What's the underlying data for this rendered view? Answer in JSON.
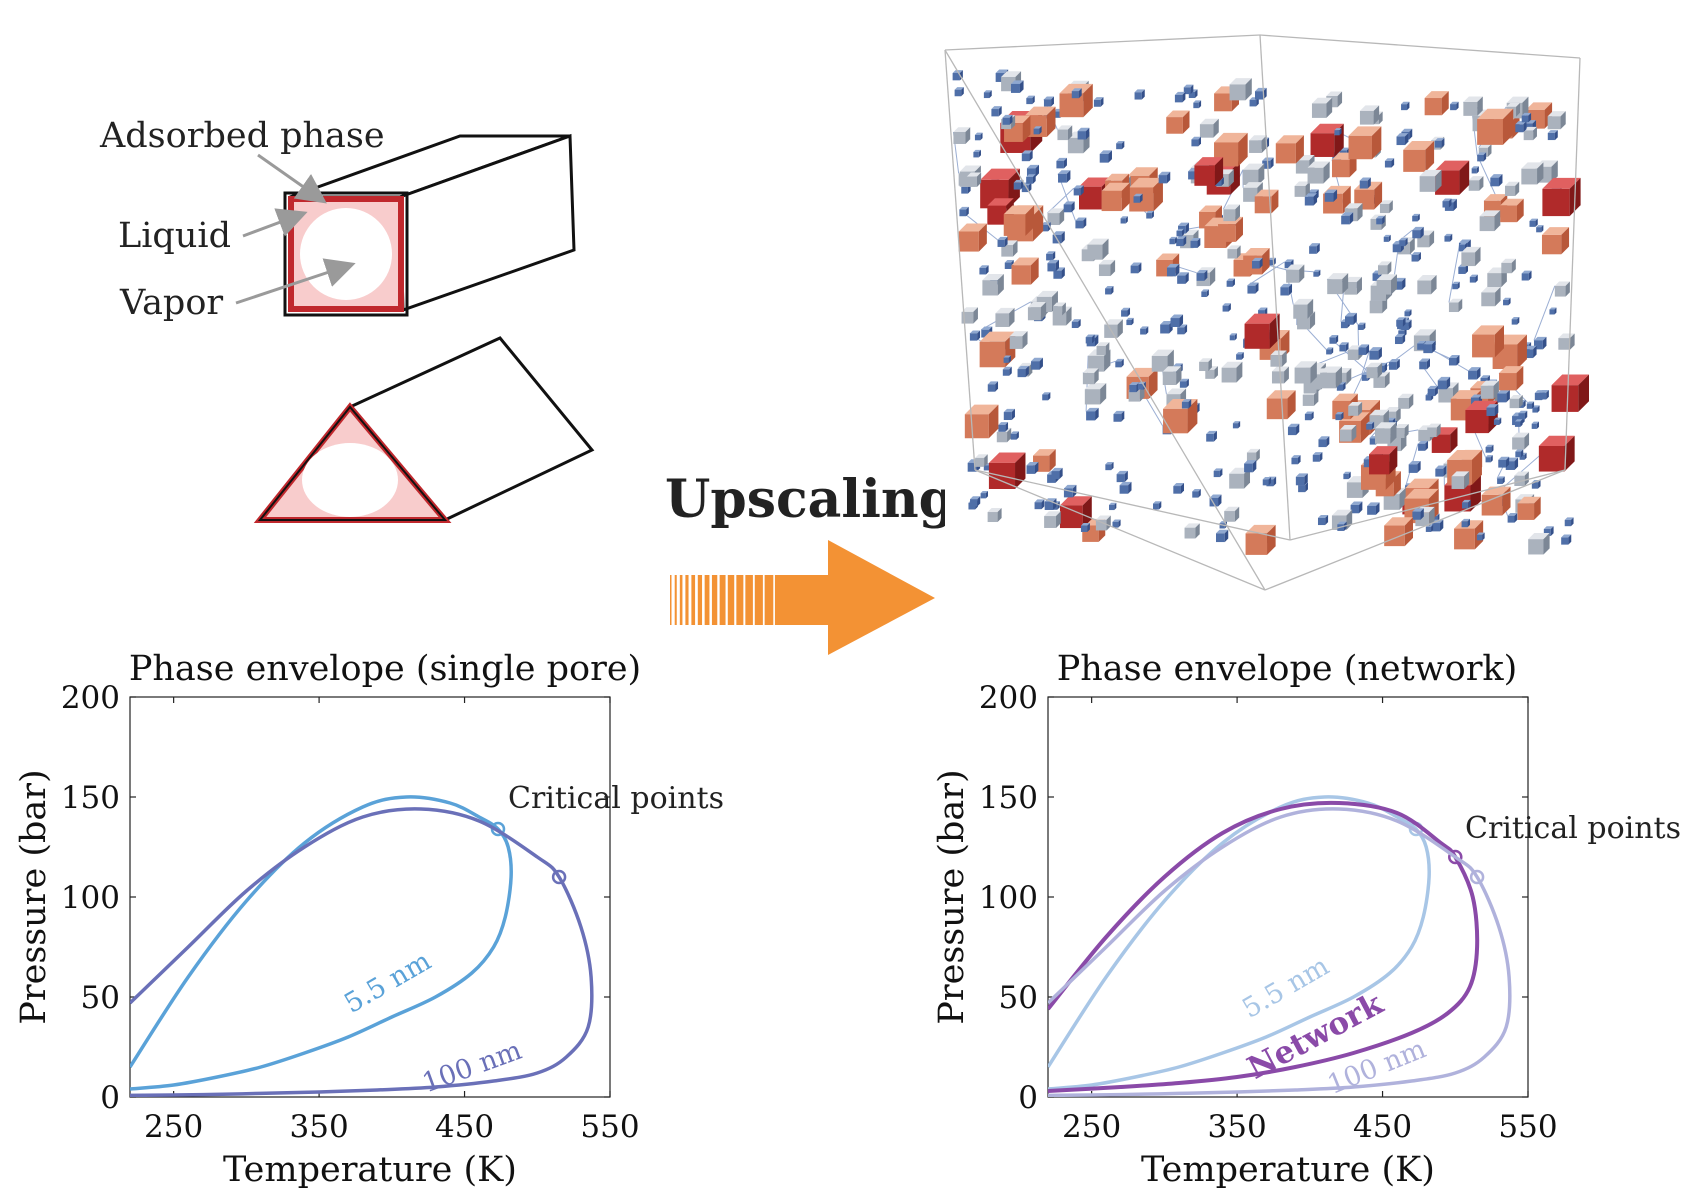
{
  "pore_labels": {
    "adsorbed": "Adsorbed phase",
    "liquid": "Liquid",
    "vapor": "Vapor"
  },
  "upscaling_label": "Upscaling",
  "colors": {
    "wall": "#c0282d",
    "liquid_fill": "#f8cccc",
    "arrow": "#f39234",
    "curve_5nm": "#5aa2d8",
    "curve_100nm": "#6a70b8",
    "network": "#8a4aa8",
    "curve_5nm_light": "#a8c6e6",
    "curve_100nm_light": "#b0b2dc"
  },
  "chart_data": [
    {
      "type": "line",
      "title": "Phase envelope (single pore)",
      "xlabel": "Temperature (K)",
      "ylabel": "Pressure (bar)",
      "xlim": [
        220,
        550
      ],
      "ylim": [
        0,
        200
      ],
      "xticks": [
        "250",
        "350",
        "450",
        "550"
      ],
      "yticks": [
        "0",
        "50",
        "100",
        "150",
        "200"
      ],
      "annotation": "Critical points",
      "series": [
        {
          "name": "5.5 nm",
          "color": "#5aa2d8",
          "critical_point": [
            473,
            134
          ],
          "x": [
            220,
            260,
            300,
            340,
            380,
            410,
            440,
            460,
            473,
            480,
            482,
            478,
            470,
            455,
            430,
            400,
            370,
            340,
            310,
            280,
            250,
            220
          ],
          "y": [
            15,
            60,
            98,
            127,
            145,
            150,
            147,
            140,
            134,
            125,
            110,
            90,
            75,
            62,
            50,
            40,
            30,
            22,
            15,
            10,
            6,
            4
          ]
        },
        {
          "name": "100 nm",
          "color": "#6a70b8",
          "critical_point": [
            515,
            110
          ],
          "x": [
            220,
            260,
            300,
            340,
            380,
            420,
            460,
            500,
            515,
            530,
            537,
            535,
            520,
            500,
            470,
            430,
            390,
            350,
            310,
            270,
            220
          ],
          "y": [
            47,
            75,
            103,
            125,
            140,
            144,
            138,
            120,
            110,
            85,
            60,
            35,
            20,
            12,
            8,
            5,
            3.5,
            2.5,
            1.8,
            1.2,
            0.8
          ]
        }
      ]
    },
    {
      "type": "line",
      "title": "Phase envelope (network)",
      "xlabel": "Temperature (K)",
      "ylabel": "Pressure (bar)",
      "xlim": [
        220,
        550
      ],
      "ylim": [
        0,
        200
      ],
      "xticks": [
        "250",
        "350",
        "450",
        "550"
      ],
      "yticks": [
        "0",
        "50",
        "100",
        "150",
        "200"
      ],
      "annotation": "Critical points",
      "series": [
        {
          "name": "5.5 nm",
          "color": "#a8c6e6",
          "critical_point": [
            473,
            134
          ],
          "x": [
            220,
            260,
            300,
            340,
            380,
            410,
            440,
            460,
            473,
            480,
            482,
            478,
            470,
            455,
            430,
            400,
            370,
            340,
            310,
            280,
            250,
            220
          ],
          "y": [
            15,
            60,
            98,
            127,
            145,
            150,
            147,
            140,
            134,
            125,
            110,
            90,
            75,
            62,
            50,
            40,
            30,
            22,
            15,
            10,
            6,
            4
          ]
        },
        {
          "name": "Network",
          "color": "#8a4aa8",
          "critical_point": [
            500,
            120
          ],
          "x": [
            220,
            260,
            300,
            340,
            380,
            420,
            460,
            490,
            500,
            512,
            515,
            510,
            495,
            470,
            430,
            390,
            350,
            310,
            270,
            220
          ],
          "y": [
            44,
            80,
            110,
            132,
            144,
            147,
            142,
            127,
            120,
            100,
            75,
            55,
            42,
            32,
            22,
            15,
            10,
            7,
            5,
            3
          ]
        },
        {
          "name": "100 nm",
          "color": "#b0b2dc",
          "critical_point": [
            515,
            110
          ],
          "x": [
            220,
            260,
            300,
            340,
            380,
            420,
            460,
            500,
            515,
            530,
            537,
            535,
            520,
            500,
            470,
            430,
            390,
            350,
            310,
            270,
            220
          ],
          "y": [
            47,
            75,
            103,
            125,
            140,
            144,
            138,
            120,
            110,
            85,
            60,
            35,
            20,
            12,
            8,
            5,
            3.5,
            2.5,
            1.8,
            1.2,
            0.8
          ]
        }
      ]
    }
  ]
}
